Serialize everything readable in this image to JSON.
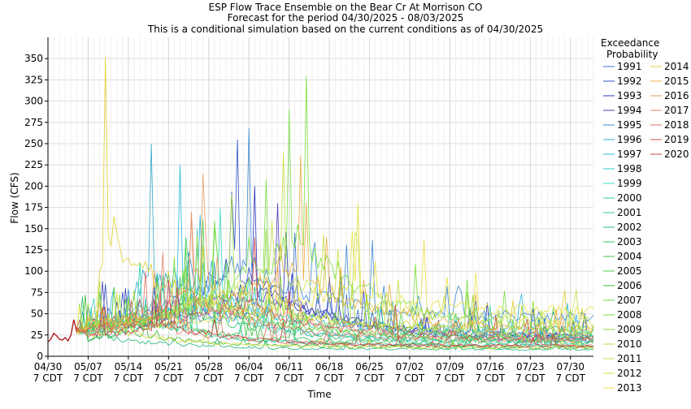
{
  "chart_data": {
    "type": "line",
    "title": "ESP Flow Trace Ensemble on the Bear Cr At Morrison CO",
    "subtitle": "Forecast for the period 04/30/2025 - 08/03/2025",
    "subtitle2": "This is a conditional simulation based on the current conditions as of 04/30/2025",
    "xlabel": "Time",
    "ylabel": "Flow (CFS)",
    "ylim": [
      0,
      375
    ],
    "yticks": [
      0,
      25,
      50,
      75,
      100,
      125,
      150,
      175,
      200,
      225,
      250,
      275,
      300,
      325,
      350
    ],
    "xlim": [
      0,
      95
    ],
    "xticks": [
      {
        "day": 0,
        "line1": "04/30",
        "line2": "7 CDT"
      },
      {
        "day": 7,
        "line1": "05/07",
        "line2": "7 CDT"
      },
      {
        "day": 14,
        "line1": "05/14",
        "line2": "7 CDT"
      },
      {
        "day": 21,
        "line1": "05/21",
        "line2": "7 CDT"
      },
      {
        "day": 28,
        "line1": "05/28",
        "line2": "7 CDT"
      },
      {
        "day": 35,
        "line1": "06/04",
        "line2": "7 CDT"
      },
      {
        "day": 42,
        "line1": "06/11",
        "line2": "7 CDT"
      },
      {
        "day": 49,
        "line1": "06/18",
        "line2": "7 CDT"
      },
      {
        "day": 56,
        "line1": "06/25",
        "line2": "7 CDT"
      },
      {
        "day": 63,
        "line1": "07/02",
        "line2": "7 CDT"
      },
      {
        "day": 70,
        "line1": "07/09",
        "line2": "7 CDT"
      },
      {
        "day": 77,
        "line1": "07/16",
        "line2": "7 CDT"
      },
      {
        "day": 84,
        "line1": "07/23",
        "line2": "7 CDT"
      },
      {
        "day": 91,
        "line1": "07/30",
        "line2": "7 CDT"
      }
    ],
    "grid": true,
    "legend_placement": "right",
    "legend_title_1": "Exceedance",
    "legend_title_2": "Probability",
    "observed": {
      "x": [
        0,
        0.5,
        1,
        1.5,
        2,
        2.5,
        3,
        3.5,
        4,
        4.5,
        5
      ],
      "y": [
        17,
        20,
        27,
        24,
        20,
        19,
        22,
        18,
        25,
        43,
        29
      ]
    },
    "series": [
      {
        "name": "1991",
        "color": "#3a6fd0",
        "peak_day": 43,
        "peak": 145,
        "base": 35,
        "end": 18
      },
      {
        "name": "1992",
        "color": "#3050c8",
        "peak_day": 33,
        "peak": 255,
        "base": 40,
        "end": 22
      },
      {
        "name": "1993",
        "color": "#2838c0",
        "peak_day": 36,
        "peak": 200,
        "base": 38,
        "end": 24
      },
      {
        "name": "1994",
        "color": "#4840b8",
        "peak_day": 40,
        "peak": 180,
        "base": 36,
        "end": 20
      },
      {
        "name": "1995",
        "color": "#3c8ad0",
        "peak_day": 35,
        "peak": 268,
        "base": 42,
        "end": 45
      },
      {
        "name": "1996",
        "color": "#30a8c8",
        "peak_day": 18,
        "peak": 250,
        "base": 30,
        "end": 18
      },
      {
        "name": "1997",
        "color": "#28b8d8",
        "peak_day": 23,
        "peak": 225,
        "base": 34,
        "end": 30
      },
      {
        "name": "1998",
        "color": "#30c8c8",
        "peak_day": 26,
        "peak": 150,
        "base": 28,
        "end": 15
      },
      {
        "name": "1999",
        "color": "#38d8c0",
        "peak_day": 30,
        "peak": 175,
        "base": 36,
        "end": 25
      },
      {
        "name": "2000",
        "color": "#28d0b0",
        "peak_day": 16,
        "peak": 110,
        "base": 26,
        "end": 12
      },
      {
        "name": "2001",
        "color": "#30c890",
        "peak_day": 20,
        "peak": 95,
        "base": 24,
        "end": 12
      },
      {
        "name": "2002",
        "color": "#20b878",
        "peak_day": 10,
        "peak": 55,
        "base": 20,
        "end": 8
      },
      {
        "name": "2003",
        "color": "#30c860",
        "peak_day": 24,
        "peak": 140,
        "base": 34,
        "end": 18
      },
      {
        "name": "2004",
        "color": "#40c040",
        "peak_day": 19,
        "peak": 95,
        "base": 30,
        "end": 16
      },
      {
        "name": "2005",
        "color": "#50d050",
        "peak_day": 27,
        "peak": 160,
        "base": 36,
        "end": 22
      },
      {
        "name": "2006",
        "color": "#38b830",
        "peak_day": 14,
        "peak": 70,
        "base": 22,
        "end": 10
      },
      {
        "name": "2007",
        "color": "#68d840",
        "peak_day": 29,
        "peak": 150,
        "base": 36,
        "end": 20
      },
      {
        "name": "2008",
        "color": "#78e040",
        "peak_day": 45,
        "peak": 330,
        "base": 40,
        "end": 28
      },
      {
        "name": "2009",
        "color": "#90d838",
        "peak_day": 38,
        "peak": 150,
        "base": 36,
        "end": 30
      },
      {
        "name": "2010",
        "color": "#a8e040",
        "peak_day": 32,
        "peak": 190,
        "base": 38,
        "end": 26
      },
      {
        "name": "2011",
        "color": "#c8e048",
        "peak_day": 41,
        "peak": 240,
        "base": 40,
        "end": 40
      },
      {
        "name": "2012",
        "color": "#d8e038",
        "peak_day": 12,
        "peak": 75,
        "base": 24,
        "end": 10
      },
      {
        "name": "2013",
        "color": "#e8e040",
        "peak_day": 54,
        "peak": 180,
        "base": 34,
        "end": 50
      },
      {
        "name": "2014",
        "color": "#e0d030",
        "peak_day": 10,
        "peak": 352,
        "base": 40,
        "end": 35
      },
      {
        "name": "2015",
        "color": "#e8b040",
        "peak_day": 44,
        "peak": 236,
        "base": 42,
        "end": 30
      },
      {
        "name": "2016",
        "color": "#e8a060",
        "peak_day": 27,
        "peak": 215,
        "base": 38,
        "end": 24
      },
      {
        "name": "2017",
        "color": "#e08868",
        "peak_day": 25,
        "peak": 170,
        "base": 34,
        "end": 18
      },
      {
        "name": "2018",
        "color": "#e07060",
        "peak_day": 17,
        "peak": 100,
        "base": 26,
        "end": 12
      },
      {
        "name": "2019",
        "color": "#d85050",
        "peak_day": 36,
        "peak": 140,
        "base": 34,
        "end": 20
      },
      {
        "name": "2020",
        "color": "#c84040",
        "peak_day": 21,
        "peak": 90,
        "base": 26,
        "end": 12
      }
    ]
  }
}
